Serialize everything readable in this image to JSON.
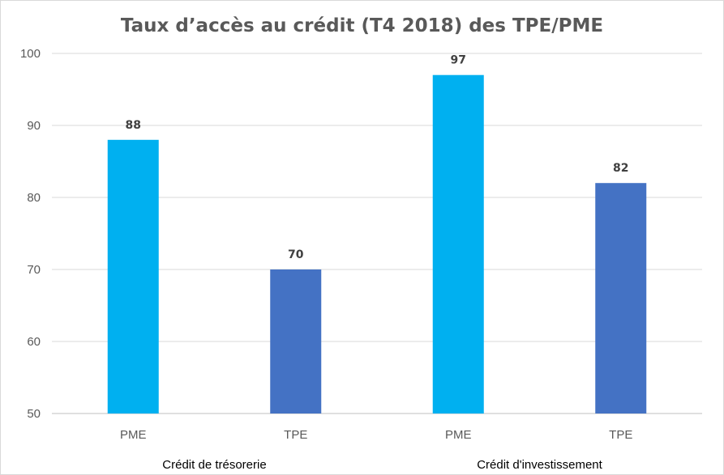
{
  "chart_data": {
    "type": "bar",
    "title": "Taux d’accès au crédit (T4 2018) des TPE/PME",
    "xlabel": "",
    "ylabel": "",
    "ylim": [
      50,
      100
    ],
    "yticks": [
      50,
      60,
      70,
      80,
      90,
      100
    ],
    "grid": true,
    "legend": "none",
    "groups": [
      {
        "label": "Crédit de trésorerie",
        "bars": [
          {
            "category": "PME",
            "value": 88,
            "color": "#00b0f0"
          },
          {
            "category": "TPE",
            "value": 70,
            "color": "#4472c4"
          }
        ]
      },
      {
        "label": "Crédit d'investissement",
        "bars": [
          {
            "category": "PME",
            "value": 97,
            "color": "#00b0f0"
          },
          {
            "category": "TPE",
            "value": 82,
            "color": "#4472c4"
          }
        ]
      }
    ]
  }
}
